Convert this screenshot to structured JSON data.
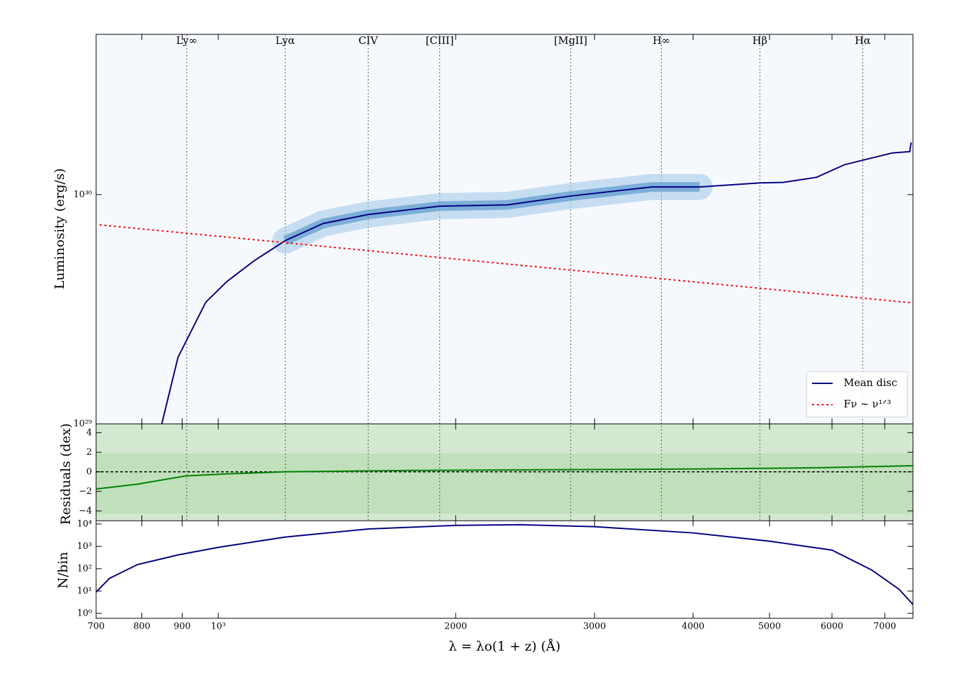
{
  "chart_data": [
    {
      "type": "line",
      "ylabel": "Luminosity (erg/s)",
      "xscale": "log",
      "yscale": "log",
      "xlim": [
        700,
        7600
      ],
      "ylim": [
        1e+29,
        5e+30
      ],
      "yticks": [
        {
          "value": 1e+29,
          "label": "10²⁹"
        },
        {
          "value": 1e+30,
          "label": "10³⁰"
        }
      ],
      "legend": "lower right",
      "density": true,
      "lines": [
        {
          "label": "Ly∞",
          "x": 912
        },
        {
          "label": "Lyα",
          "x": 1216
        },
        {
          "label": "CIV",
          "x": 1549
        },
        {
          "label": "[CIII]",
          "x": 1909
        },
        {
          "label": "[MgII]",
          "x": 2798
        },
        {
          "label": "H∞",
          "x": 3646
        },
        {
          "label": "Hβ",
          "x": 4861
        },
        {
          "label": "Hα",
          "x": 6563
        }
      ],
      "series": [
        {
          "name": "Mean disc",
          "color": "#00007f",
          "linestyle": "solid",
          "x": [
            848,
            889,
            964,
            1025,
            1109,
            1216,
            1358,
            1549,
            1906,
            2326,
            2798,
            3547,
            4077,
            4861,
            5200,
            5736,
            6223,
            6604,
            7160,
            7529,
            7560
          ],
          "values": [
            1e+29,
            1.95e+29,
            3.39e+29,
            4.17e+29,
            5.13e+29,
            6.3e+29,
            7.48e+29,
            8.19e+29,
            8.9e+29,
            9.02e+29,
            9.86e+29,
            1.08e+30,
            1.08e+30,
            1.125e+30,
            1.13e+30,
            1.19e+30,
            1.35e+30,
            1.42e+30,
            1.52e+30,
            1.54e+30,
            1.69e+30
          ]
        },
        {
          "name": "Fν ∼ ν¹ᐟ³",
          "color": "#ff0000",
          "linestyle": "dotted",
          "x": [
            707,
            7600
          ],
          "values": [
            7.38e+29,
            3.37e+29
          ]
        }
      ]
    },
    {
      "type": "line",
      "ylabel": "Residuals (dex)",
      "xscale": "log",
      "yscale": "linear",
      "xlim": [
        700,
        7600
      ],
      "ylim": [
        -5,
        4.9
      ],
      "yticks": [
        {
          "value": -4,
          "label": "−4"
        },
        {
          "value": -2,
          "label": "−2"
        },
        0,
        2,
        4
      ],
      "zero_line": true,
      "series": [
        {
          "color": "#008000",
          "linestyle": "solid",
          "x": [
            700,
            790,
            909,
            1025,
            1216,
            1759,
            2625,
            3922,
            5852,
            7600
          ],
          "values": [
            -1.75,
            -1.26,
            -0.42,
            -0.21,
            0,
            0.14,
            0.21,
            0.28,
            0.42,
            0.63
          ]
        }
      ]
    },
    {
      "type": "line",
      "ylabel": "N/bin",
      "xlabel": "λ = λo(1 + z) (Å)",
      "xscale": "log",
      "yscale": "log",
      "xlim": [
        700,
        7600
      ],
      "ylim": [
        0.6,
        14000
      ],
      "yticks": [
        {
          "value": 1,
          "label": "10⁰"
        },
        {
          "value": 10,
          "label": "10¹"
        },
        {
          "value": 100,
          "label": "10²"
        },
        {
          "value": 1000,
          "label": "10³"
        },
        {
          "value": 10000,
          "label": "10⁴"
        }
      ],
      "xticks": [
        700,
        800,
        900,
        {
          "value": 1000,
          "label": "10³"
        },
        2000,
        3000,
        4000,
        5000,
        6000,
        7000
      ],
      "series": [
        {
          "color": "#00007f",
          "linestyle": "solid",
          "x": [
            700,
            728,
            790,
            889,
            1000,
            1216,
            1549,
            2000,
            2423,
            3000,
            4000,
            5000,
            6000,
            6738,
            7298,
            7600
          ],
          "values": [
            9,
            37,
            153,
            412,
            900,
            2600,
            6000,
            8700,
            9300,
            7600,
            4000,
            1700,
            680,
            87,
            12,
            2.5
          ]
        }
      ]
    }
  ]
}
